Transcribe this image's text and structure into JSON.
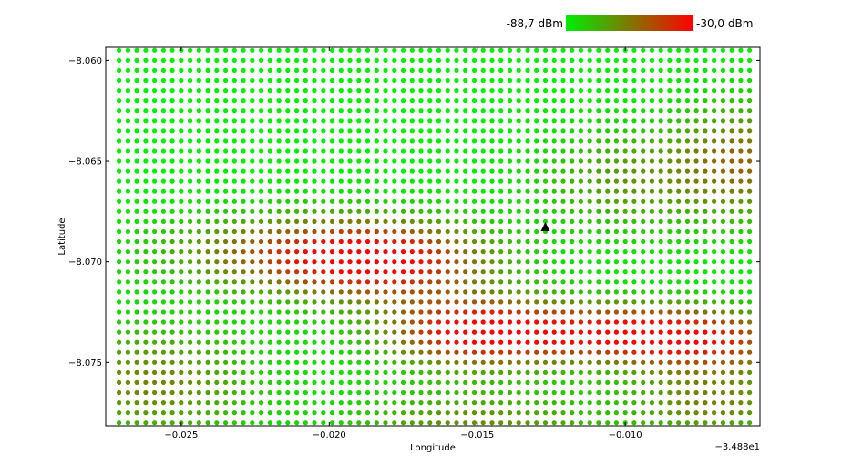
{
  "chart_data": {
    "type": "scatter",
    "title": "",
    "xlabel": "Longitude",
    "ylabel": "Latitude",
    "x_offset_label": "−3.488e1",
    "xlim": [
      -0.02755,
      -0.00545
    ],
    "ylim": [
      -8.07815,
      -8.05935
    ],
    "xticks": [
      -0.025,
      -0.02,
      -0.015,
      -0.01
    ],
    "xtick_labels": [
      "−0.025",
      "−0.020",
      "−0.015",
      "−0.010"
    ],
    "yticks": [
      -8.06,
      -8.065,
      -8.07,
      -8.075
    ],
    "ytick_labels": [
      "−8.060",
      "−8.065",
      "−8.070",
      "−8.075"
    ],
    "grid": false,
    "colorbar": {
      "min_label": "-88,7 dBm",
      "max_label": "-30,0 dBm",
      "min": -88.7,
      "max": -30.0,
      "color_min": "#00ee00",
      "color_max": "#ff0000",
      "placement": "top-right"
    },
    "grid_points": {
      "x_start": -0.0271,
      "x_step": 0.0003,
      "x_count": 72,
      "y_start": -8.078,
      "y_step": 0.0005,
      "y_count": 38
    },
    "signal_model": {
      "base": -88.7,
      "rise": 58.7,
      "hotspots": [
        {
          "x": -0.015,
          "y": -8.0735,
          "sx": 0.0022,
          "sy": 0.0012,
          "w": 1.0
        },
        {
          "x": -0.018,
          "y": -8.07,
          "sx": 0.0025,
          "sy": 0.0014,
          "w": 0.85
        },
        {
          "x": -0.0215,
          "y": -8.0695,
          "sx": 0.003,
          "sy": 0.0013,
          "w": 0.55
        },
        {
          "x": -0.01,
          "y": -8.0735,
          "sx": 0.0025,
          "sy": 0.001,
          "w": 0.8
        },
        {
          "x": -0.0072,
          "y": -8.074,
          "sx": 0.0022,
          "sy": 0.0011,
          "w": 0.6
        },
        {
          "x": -0.006,
          "y": -8.065,
          "sx": 0.0016,
          "sy": 0.002,
          "w": 0.55
        },
        {
          "x": -0.01,
          "y": -8.066,
          "sx": 0.002,
          "sy": 0.0018,
          "w": 0.35
        },
        {
          "x": -0.026,
          "y": -8.076,
          "sx": 0.0025,
          "sy": 0.002,
          "w": 0.45
        },
        {
          "x": -0.015,
          "y": -8.078,
          "sx": 0.003,
          "sy": 0.0012,
          "w": 0.4
        },
        {
          "x": -0.007,
          "y": -8.077,
          "sx": 0.002,
          "sy": 0.0012,
          "w": 0.45
        }
      ]
    },
    "marker": {
      "x": -0.0127,
      "y": -8.0683,
      "shape": "triangle",
      "color": "#000000"
    }
  }
}
